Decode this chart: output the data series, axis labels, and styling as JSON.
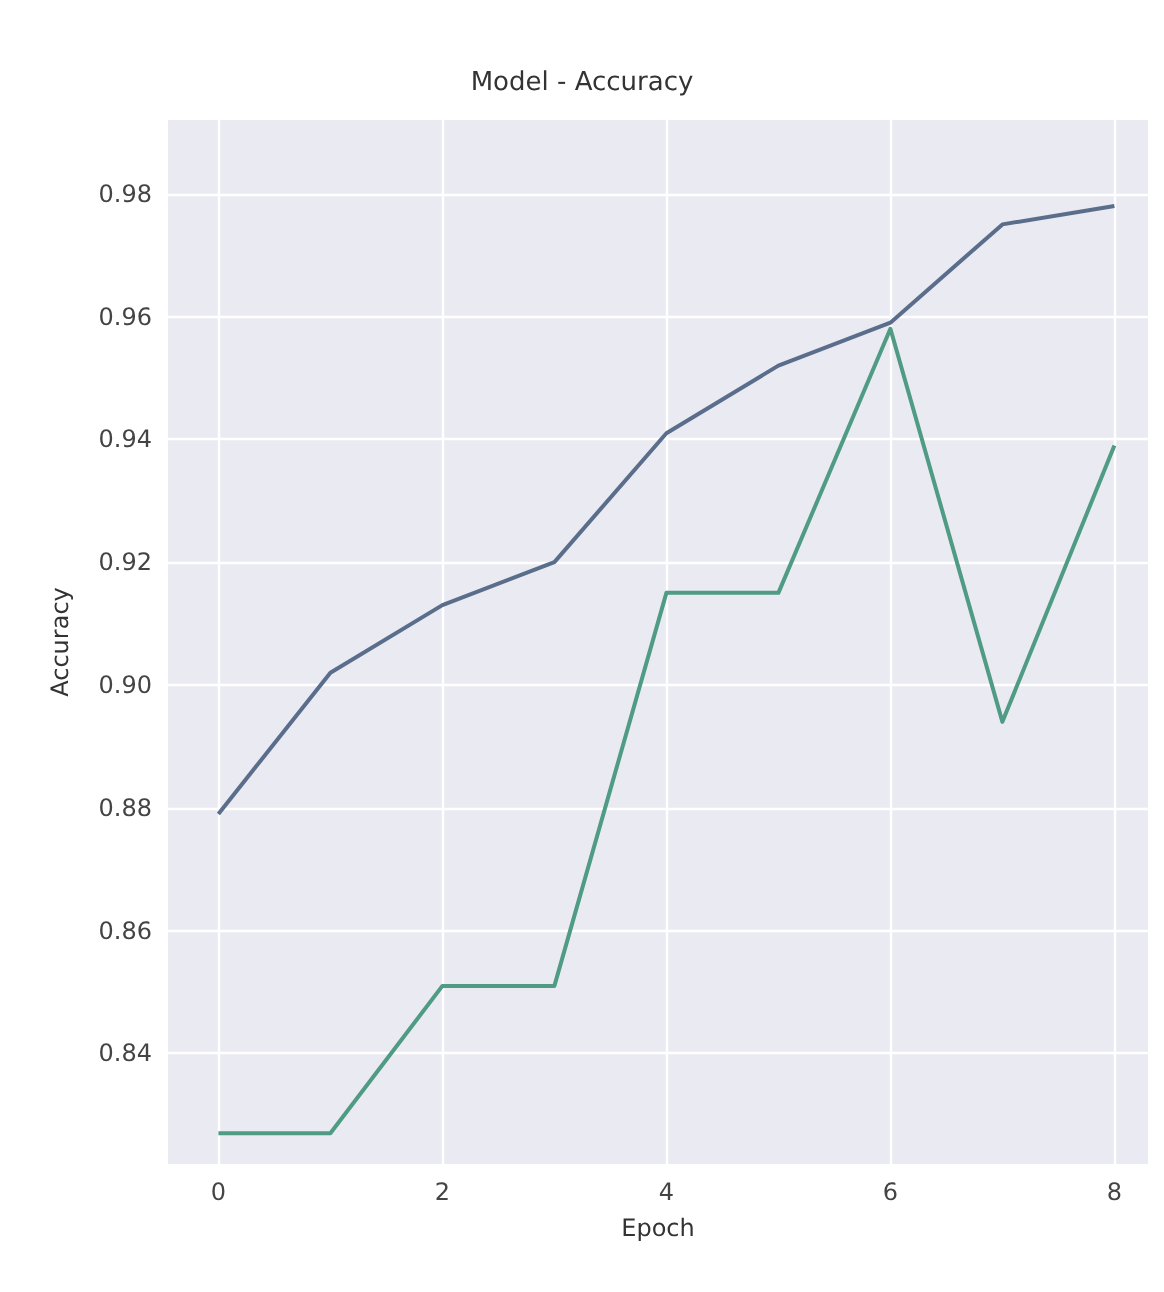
{
  "chart_data": {
    "type": "line",
    "title": "Model - Accuracy",
    "xlabel": "Epoch",
    "ylabel": "Accuracy",
    "x": [
      0,
      1,
      2,
      3,
      4,
      5,
      6,
      7,
      8
    ],
    "series": [
      {
        "color": "#5a6e8c",
        "values": [
          0.879,
          0.902,
          0.913,
          0.92,
          0.941,
          0.952,
          0.959,
          0.975,
          0.978
        ]
      },
      {
        "color": "#4f9b84",
        "values": [
          0.827,
          0.827,
          0.851,
          0.851,
          0.915,
          0.915,
          0.958,
          0.894,
          0.939
        ]
      }
    ],
    "xlim": [
      -0.45,
      8.3
    ],
    "xticks": [
      0,
      2,
      4,
      6,
      8
    ],
    "ylim": [
      0.822,
      0.992
    ],
    "yticks": [
      0.84,
      0.86,
      0.88,
      {
        "value": 0.9,
        "label": "0.90"
      },
      0.92,
      0.94,
      0.96,
      0.98
    ],
    "grid": true
  }
}
